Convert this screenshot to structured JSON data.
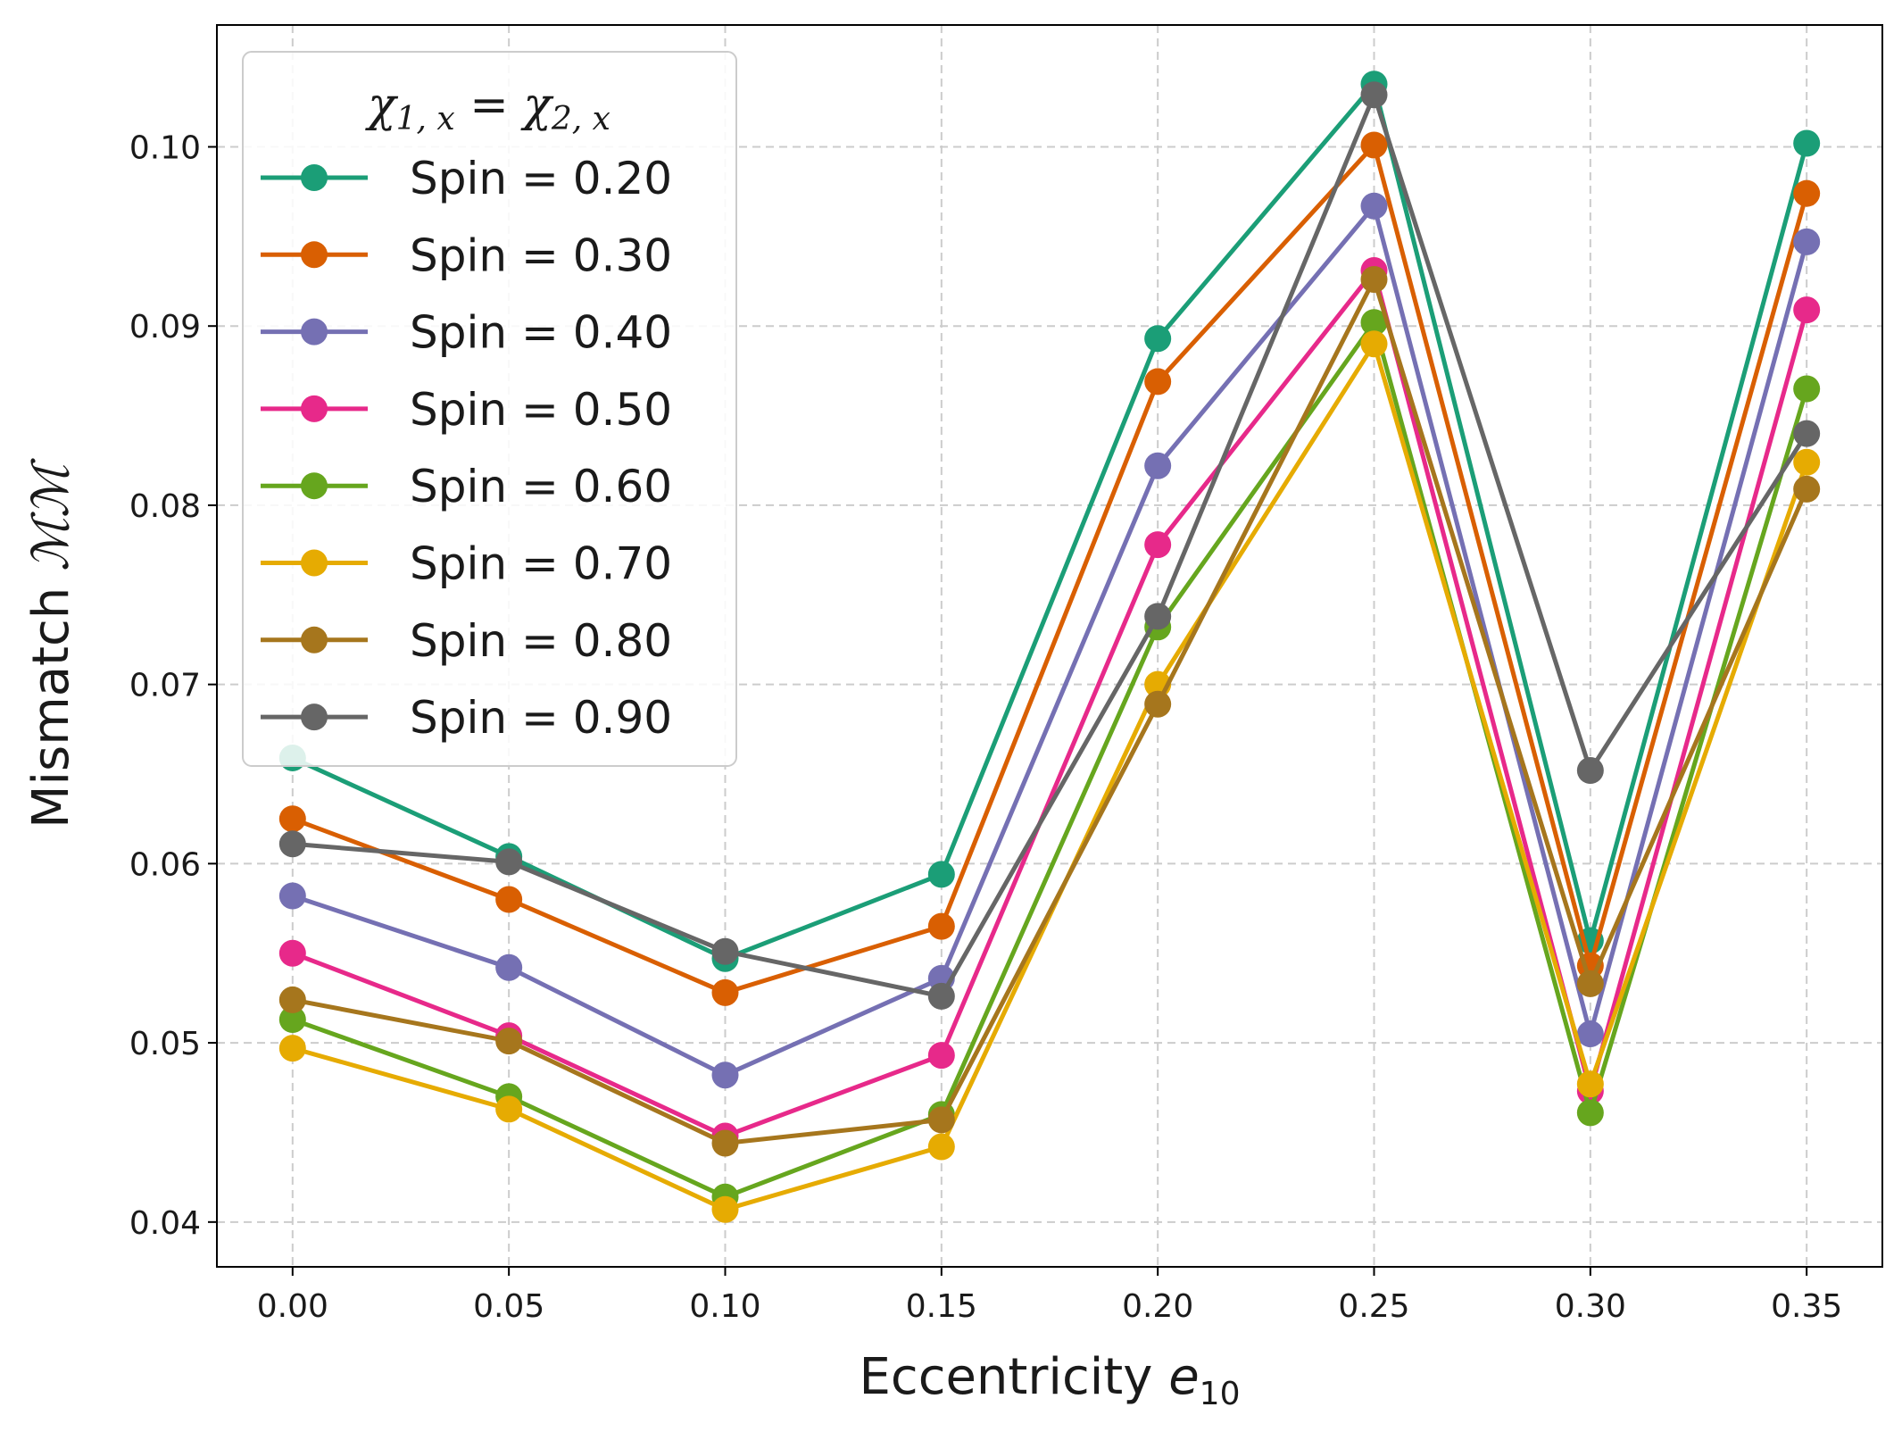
{
  "chart_data": {
    "type": "line",
    "x": [
      0.0,
      0.05,
      0.1,
      0.15,
      0.2,
      0.25,
      0.3,
      0.35
    ],
    "x_tick_labels": [
      "0.00",
      "0.05",
      "0.10",
      "0.15",
      "0.20",
      "0.25",
      "0.30",
      "0.35"
    ],
    "y_ticks": [
      0.04,
      0.05,
      0.06,
      0.07,
      0.08,
      0.09,
      0.1
    ],
    "y_tick_labels": [
      "0.04",
      "0.05",
      "0.06",
      "0.07",
      "0.08",
      "0.09",
      "0.10"
    ],
    "xlim": [
      -0.0175,
      0.3675
    ],
    "ylim": [
      0.0375,
      0.1068
    ],
    "grid": true,
    "xlabel_main": "Eccentricity ",
    "xlabel_var": "e",
    "xlabel_sub": "10",
    "ylabel_main": "Mismatch ",
    "ylabel_var": "ℳℳ",
    "legend": {
      "title_parts": [
        "χ",
        "1, x",
        " = χ",
        "2, x"
      ],
      "location": "upper-left"
    },
    "series": [
      {
        "name": "Spin = 0.20",
        "color": "#1b9e77",
        "values": [
          0.0659,
          0.0604,
          0.0547,
          0.0594,
          0.0893,
          0.1035,
          0.0557,
          0.1002
        ]
      },
      {
        "name": "Spin = 0.30",
        "color": "#d95f02",
        "values": [
          0.0625,
          0.058,
          0.0528,
          0.0565,
          0.0869,
          0.1001,
          0.0543,
          0.0974
        ]
      },
      {
        "name": "Spin = 0.40",
        "color": "#7570b3",
        "values": [
          0.0582,
          0.0542,
          0.0482,
          0.0536,
          0.0822,
          0.0967,
          0.0505,
          0.0947
        ]
      },
      {
        "name": "Spin = 0.50",
        "color": "#e7298a",
        "values": [
          0.055,
          0.0504,
          0.0448,
          0.0493,
          0.0778,
          0.0931,
          0.0473,
          0.0909
        ]
      },
      {
        "name": "Spin = 0.60",
        "color": "#66a61e",
        "values": [
          0.0513,
          0.047,
          0.0414,
          0.046,
          0.0732,
          0.0902,
          0.0461,
          0.0865
        ]
      },
      {
        "name": "Spin = 0.70",
        "color": "#e6ab02",
        "values": [
          0.0497,
          0.0463,
          0.0407,
          0.0442,
          0.07,
          0.089,
          0.0477,
          0.0824
        ]
      },
      {
        "name": "Spin = 0.80",
        "color": "#a6761d",
        "values": [
          0.0524,
          0.0501,
          0.0444,
          0.0457,
          0.0689,
          0.0926,
          0.0533,
          0.0809
        ]
      },
      {
        "name": "Spin = 0.90",
        "color": "#666666",
        "values": [
          0.0611,
          0.0601,
          0.0551,
          0.0526,
          0.0738,
          0.1029,
          0.0652,
          0.084
        ]
      }
    ]
  }
}
